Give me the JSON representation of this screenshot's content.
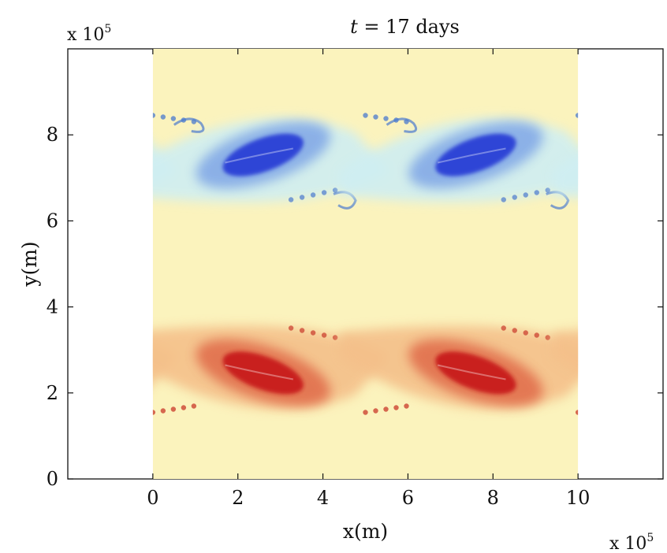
{
  "chart_data": {
    "type": "heatmap",
    "title": "t = 17 days",
    "title_var": "t",
    "title_rest": " = 17 days",
    "xlabel": "x(m)",
    "ylabel": "y(m)",
    "x_scale_label": "x 10",
    "x_scale_exp": "5",
    "y_scale_label": "x 10",
    "y_scale_exp": "5",
    "xlim": [
      -2,
      12
    ],
    "ylim": [
      0,
      10
    ],
    "xticks": [
      0,
      2,
      4,
      6,
      8,
      10
    ],
    "yticks": [
      0,
      2,
      4,
      6,
      8
    ],
    "field_extent": {
      "x": [
        0,
        10
      ],
      "y": [
        0,
        10
      ]
    },
    "colormap": [
      "#2b3fd6",
      "#7fa6e6",
      "#cfeef2",
      "#fbf3bd",
      "#f4c08a",
      "#e06a4a",
      "#c81e1e"
    ],
    "background_color": "#fbf3bd",
    "periods_in_x": 2,
    "features": [
      {
        "name": "negative vortex band",
        "sign": "negative",
        "y_center": 7.5,
        "color": "#2b3fd6"
      },
      {
        "name": "positive vortex band",
        "sign": "positive",
        "y_center": 2.5,
        "color": "#c81e1e"
      }
    ],
    "grid": false
  }
}
